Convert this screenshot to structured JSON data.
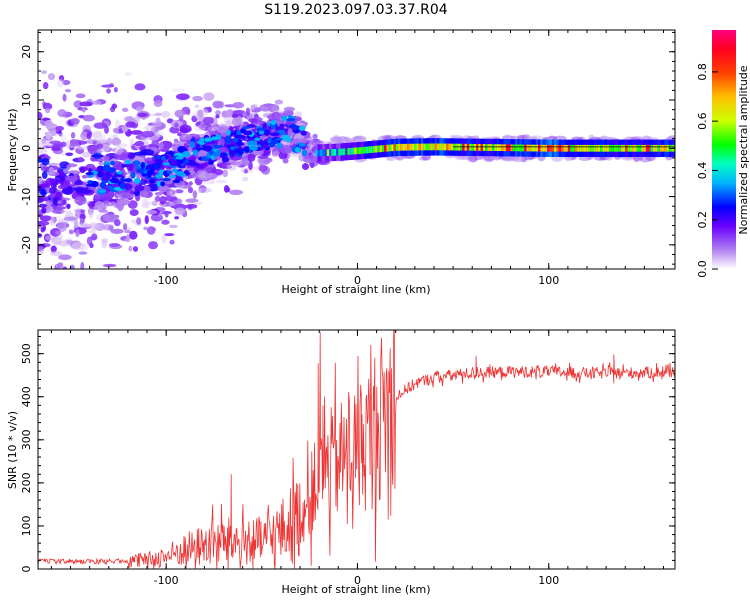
{
  "figure": {
    "title": "S119.2023.097.03.37.R04"
  },
  "chart_data": [
    {
      "type": "heatmap",
      "name": "spectrogram",
      "xlabel": "Height of straight line (km)",
      "ylabel": "Frequency (Hz)",
      "xlim": [
        -167,
        166
      ],
      "ylim": [
        -25,
        24.5
      ],
      "x_ticks": [
        -100,
        0,
        100
      ],
      "y_ticks": [
        -20,
        -10,
        0,
        10,
        20
      ],
      "grid": false,
      "colorbar": {
        "label": "Normalized spectral amplitude",
        "range": [
          0.0,
          0.97
        ],
        "ticks": [
          0.0,
          0.2,
          0.4,
          0.6,
          0.8
        ],
        "colormap": [
          "#e8d8f8",
          "#b080f0",
          "#6a00ff",
          "#0000ff",
          "#00d8ff",
          "#00ff00",
          "#ffff00",
          "#ff8000",
          "#ff0000",
          "#ff0080"
        ]
      },
      "ridge": {
        "x": [
          -167,
          -150,
          -130,
          -110,
          -95,
          -85,
          -75,
          -65,
          -55,
          -45,
          -35,
          -28,
          -22,
          -10,
          0,
          20,
          40,
          60,
          80,
          100,
          120,
          140,
          166
        ],
        "frequency": [
          -8,
          -7,
          -6,
          -5,
          -4,
          -1,
          0,
          1,
          2,
          3,
          4,
          1,
          -1,
          -0.8,
          -0.5,
          0.2,
          0.3,
          0.2,
          0.1,
          0,
          0,
          0,
          0
        ]
      }
    },
    {
      "type": "line",
      "name": "snr",
      "xlabel": "Height of straight line (km)",
      "ylabel": "SNR (10 * v/v)",
      "xlim": [
        -167,
        166
      ],
      "ylim": [
        0,
        555
      ],
      "x_ticks": [
        -100,
        0,
        100
      ],
      "y_ticks": [
        0,
        100,
        200,
        300,
        400,
        500
      ],
      "grid": false,
      "line_color": "#ee3333",
      "envelope": {
        "x": [
          -167,
          -150,
          -130,
          -110,
          -100,
          -90,
          -80,
          -70,
          -60,
          -50,
          -40,
          -30,
          -25,
          -20,
          -15,
          -10,
          -5,
          0,
          5,
          10,
          15,
          20,
          30,
          40,
          60,
          80,
          100,
          120,
          140,
          166
        ],
        "y": [
          15,
          15,
          15,
          20,
          30,
          45,
          55,
          65,
          60,
          65,
          85,
          120,
          160,
          220,
          240,
          250,
          270,
          280,
          300,
          340,
          370,
          400,
          430,
          445,
          455,
          458,
          458,
          455,
          455,
          458
        ]
      },
      "peaks": [
        {
          "x": -19.5,
          "y": 550
        },
        {
          "x": -20.5,
          "y": 478
        },
        {
          "x": -18,
          "y": 380
        },
        {
          "x": -66,
          "y": 220
        },
        {
          "x": -13,
          "y": 335
        },
        {
          "x": 2,
          "y": 400
        },
        {
          "x": 62,
          "y": 495
        },
        {
          "x": 134,
          "y": 498
        }
      ]
    }
  ]
}
